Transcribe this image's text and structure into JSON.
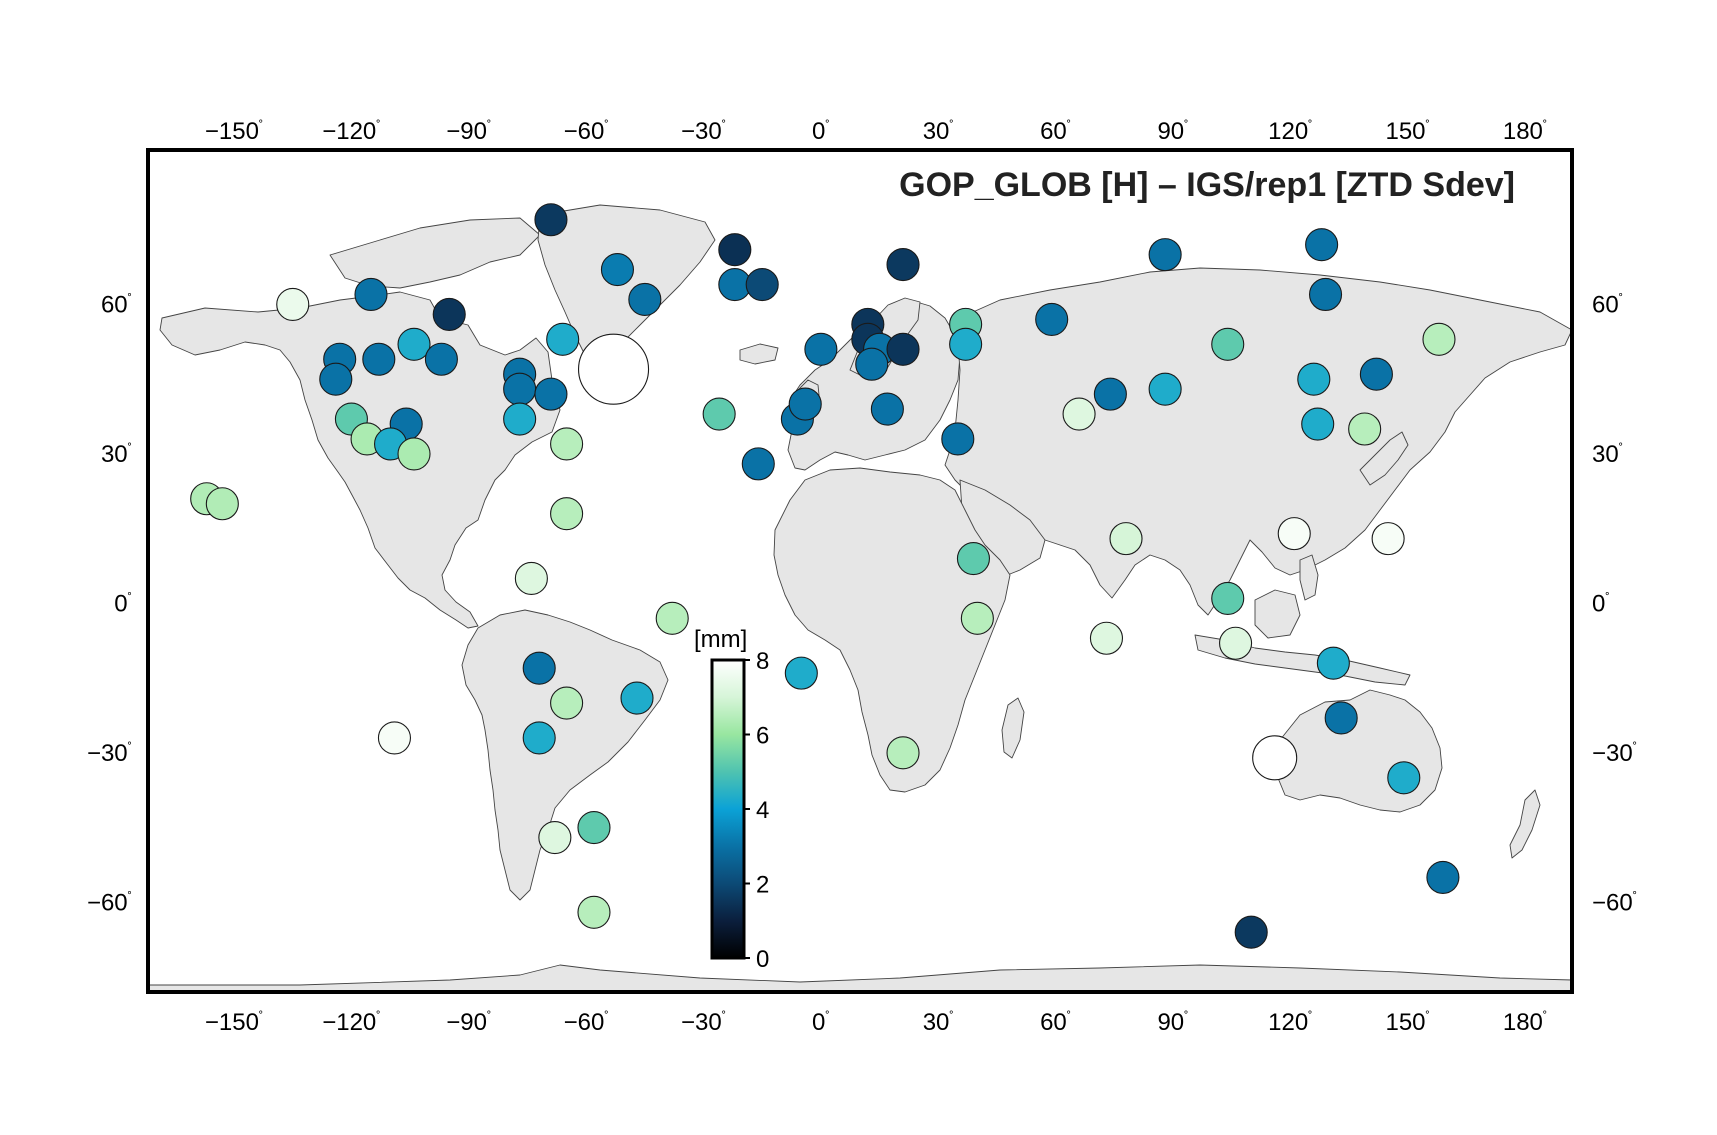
{
  "title": "GOP_GLOB [H] – IGS/rep1  [ZTD Sdev]",
  "axes": {
    "lon_ticks": [
      {
        "value": -150,
        "label": "−150"
      },
      {
        "value": -120,
        "label": "−120"
      },
      {
        "value": -90,
        "label": "−90"
      },
      {
        "value": -60,
        "label": "−60"
      },
      {
        "value": -30,
        "label": "−30"
      },
      {
        "value": 0,
        "label": "0"
      },
      {
        "value": 30,
        "label": "30"
      },
      {
        "value": 60,
        "label": "60"
      },
      {
        "value": 90,
        "label": "90"
      },
      {
        "value": 120,
        "label": "120"
      },
      {
        "value": 150,
        "label": "150"
      },
      {
        "value": 180,
        "label": "180"
      }
    ],
    "lat_ticks": [
      {
        "value": 60,
        "label": "60"
      },
      {
        "value": 30,
        "label": "30"
      },
      {
        "value": 0,
        "label": "0"
      },
      {
        "value": -30,
        "label": "−30"
      },
      {
        "value": -60,
        "label": "−60"
      }
    ],
    "degree_symbol": "˚",
    "lon_range": [
      -172,
      192
    ],
    "lat_range": [
      -78,
      91
    ]
  },
  "colorbar": {
    "unit_label": "[mm]",
    "range": [
      0,
      8
    ],
    "ticks": [
      {
        "value": 0,
        "label": "0"
      },
      {
        "value": 2,
        "label": "2"
      },
      {
        "value": 4,
        "label": "4"
      },
      {
        "value": 6,
        "label": "6"
      },
      {
        "value": 8,
        "label": "8"
      }
    ],
    "palette": [
      "#000000",
      "#0b1f3d",
      "#0c4a76",
      "#0a72a6",
      "#0ba2d6",
      "#4fc3b0",
      "#98e6a0",
      "#d6f5d8",
      "#ffffff"
    ]
  },
  "colors": {
    "land": "#e6e6e6",
    "ocean": "#ffffff",
    "frame": "#000000"
  },
  "stations": [
    {
      "lon": -69,
      "lat": 77,
      "value": 1.6
    },
    {
      "lon": -52,
      "lat": 67,
      "value": 3.2
    },
    {
      "lon": -45,
      "lat": 61,
      "value": 3.0
    },
    {
      "lon": -22,
      "lat": 71,
      "value": 1.4
    },
    {
      "lon": -22,
      "lat": 64,
      "value": 3.0
    },
    {
      "lon": -15,
      "lat": 64,
      "value": 2.0
    },
    {
      "lon": -135,
      "lat": 60,
      "value": 7.5
    },
    {
      "lon": -115,
      "lat": 62,
      "value": 3.0
    },
    {
      "lon": -95,
      "lat": 58,
      "value": 1.5
    },
    {
      "lon": -123,
      "lat": 49,
      "value": 3.0
    },
    {
      "lon": -113,
      "lat": 49,
      "value": 3.0
    },
    {
      "lon": -104,
      "lat": 52,
      "value": 4.3
    },
    {
      "lon": -97,
      "lat": 49,
      "value": 3.0
    },
    {
      "lon": -124,
      "lat": 45,
      "value": 3.0
    },
    {
      "lon": -66,
      "lat": 53,
      "value": 4.3
    },
    {
      "lon": -77,
      "lat": 46,
      "value": 3.0
    },
    {
      "lon": -77,
      "lat": 43,
      "value": 3.0
    },
    {
      "lon": -69,
      "lat": 42,
      "value": 3.0
    },
    {
      "lon": -120,
      "lat": 37,
      "value": 5.2
    },
    {
      "lon": -106,
      "lat": 36,
      "value": 3.0
    },
    {
      "lon": -77,
      "lat": 37,
      "value": 4.3
    },
    {
      "lon": -116,
      "lat": 33,
      "value": 6.3
    },
    {
      "lon": -110,
      "lat": 32,
      "value": 4.3
    },
    {
      "lon": -104,
      "lat": 30,
      "value": 6.3
    },
    {
      "lon": -65,
      "lat": 32,
      "value": 6.5
    },
    {
      "lon": -53,
      "lat": 47,
      "value": 8.0
    },
    {
      "lon": -157,
      "lat": 21,
      "value": 6.4
    },
    {
      "lon": -153,
      "lat": 20,
      "value": 6.4
    },
    {
      "lon": -65,
      "lat": 18,
      "value": 6.5
    },
    {
      "lon": -74,
      "lat": 5,
      "value": 7.2
    },
    {
      "lon": -38,
      "lat": -3,
      "value": 6.5
    },
    {
      "lon": -72,
      "lat": -13,
      "value": 3.0
    },
    {
      "lon": -65,
      "lat": -20,
      "value": 6.5
    },
    {
      "lon": -47,
      "lat": -19,
      "value": 4.3
    },
    {
      "lon": -72,
      "lat": -27,
      "value": 4.3
    },
    {
      "lon": -109,
      "lat": -27,
      "value": 7.8
    },
    {
      "lon": -68,
      "lat": -47,
      "value": 7.2
    },
    {
      "lon": -58,
      "lat": -45,
      "value": 5.2
    },
    {
      "lon": -58,
      "lat": -62,
      "value": 6.5
    },
    {
      "lon": -26,
      "lat": 38,
      "value": 5.2
    },
    {
      "lon": -5,
      "lat": -14,
      "value": 4.3
    },
    {
      "lon": -16,
      "lat": 28,
      "value": 3.0
    },
    {
      "lon": -6,
      "lat": 37,
      "value": 3.0
    },
    {
      "lon": -4,
      "lat": 40,
      "value": 3.0
    },
    {
      "lon": 0,
      "lat": 51,
      "value": 3.0
    },
    {
      "lon": 12,
      "lat": 56,
      "value": 1.5
    },
    {
      "lon": 12,
      "lat": 53,
      "value": 1.5
    },
    {
      "lon": 15,
      "lat": 51,
      "value": 3.0
    },
    {
      "lon": 13,
      "lat": 48,
      "value": 3.0
    },
    {
      "lon": 21,
      "lat": 51,
      "value": 1.5
    },
    {
      "lon": 21,
      "lat": 68,
      "value": 1.6
    },
    {
      "lon": 17,
      "lat": 39,
      "value": 3.0
    },
    {
      "lon": 35,
      "lat": 33,
      "value": 3.0
    },
    {
      "lon": 37,
      "lat": 56,
      "value": 5.2
    },
    {
      "lon": 37,
      "lat": 52,
      "value": 4.3
    },
    {
      "lon": 39,
      "lat": 9,
      "value": 5.2
    },
    {
      "lon": 40,
      "lat": -3,
      "value": 6.5
    },
    {
      "lon": 21,
      "lat": -30,
      "value": 6.5
    },
    {
      "lon": 59,
      "lat": 57,
      "value": 3.0
    },
    {
      "lon": 66,
      "lat": 38,
      "value": 7.2
    },
    {
      "lon": 74,
      "lat": 42,
      "value": 3.0
    },
    {
      "lon": 88,
      "lat": 43,
      "value": 4.3
    },
    {
      "lon": 88,
      "lat": 70,
      "value": 3.0
    },
    {
      "lon": 104,
      "lat": 52,
      "value": 5.2
    },
    {
      "lon": 78,
      "lat": 13,
      "value": 7.0
    },
    {
      "lon": 73,
      "lat": -7,
      "value": 7.2
    },
    {
      "lon": 104,
      "lat": 1,
      "value": 5.2
    },
    {
      "lon": 106,
      "lat": -8,
      "value": 7.2
    },
    {
      "lon": 128,
      "lat": 72,
      "value": 3.0
    },
    {
      "lon": 129,
      "lat": 62,
      "value": 3.0
    },
    {
      "lon": 126,
      "lat": 45,
      "value": 4.3
    },
    {
      "lon": 142,
      "lat": 46,
      "value": 3.0
    },
    {
      "lon": 127,
      "lat": 36,
      "value": 4.3
    },
    {
      "lon": 139,
      "lat": 35,
      "value": 6.5
    },
    {
      "lon": 158,
      "lat": 53,
      "value": 6.5
    },
    {
      "lon": 121,
      "lat": 14,
      "value": 7.8
    },
    {
      "lon": 145,
      "lat": 13,
      "value": 7.8
    },
    {
      "lon": 131,
      "lat": -12,
      "value": 4.3
    },
    {
      "lon": 133,
      "lat": -23,
      "value": 3.0
    },
    {
      "lon": 116,
      "lat": -31,
      "value": 8.0
    },
    {
      "lon": 149,
      "lat": -35,
      "value": 4.3
    },
    {
      "lon": 159,
      "lat": -55,
      "value": 3.0
    },
    {
      "lon": 110,
      "lat": -66,
      "value": 1.6
    }
  ]
}
